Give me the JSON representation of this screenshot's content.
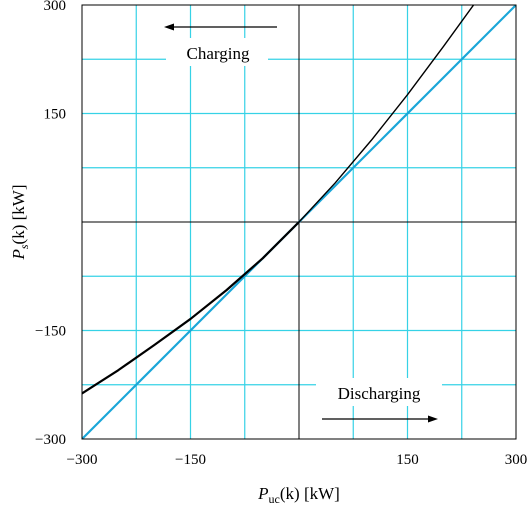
{
  "chart_data": {
    "type": "line",
    "xlabel": {
      "main": "P",
      "sub": "uc",
      "rest": "(k) [kW]"
    },
    "ylabel": {
      "main": "P",
      "sub": "s",
      "rest": "(k) [kW]"
    },
    "xlim": [
      -300,
      300
    ],
    "ylim": [
      -300,
      300
    ],
    "xticks": [
      -300,
      -150,
      150,
      300
    ],
    "yticks": [
      -300,
      -150,
      150,
      300
    ],
    "xtick_labels": [
      "−300",
      "−150",
      "150",
      "300"
    ],
    "ytick_labels": [
      "−300",
      "−150",
      "150",
      "300"
    ],
    "grid": true,
    "grid_step": 75,
    "grid_color": "#36d2e6",
    "series": [
      {
        "color": "#1aa6d8",
        "x": [
          -300,
          300
        ],
        "y": [
          -300,
          300
        ]
      },
      {
        "color": "#000000",
        "x": [
          -300,
          -250,
          -200,
          -150,
          -100,
          -50,
          0,
          50,
          100,
          150,
          200,
          250,
          280
        ],
        "y": [
          -237,
          -205,
          -170,
          -134,
          -94,
          -50,
          0,
          54,
          113,
          176,
          243,
          312,
          350
        ]
      }
    ],
    "annotations": [
      {
        "text": "Charging",
        "arrow": "left"
      },
      {
        "text": "Discharging",
        "arrow": "right"
      }
    ]
  }
}
